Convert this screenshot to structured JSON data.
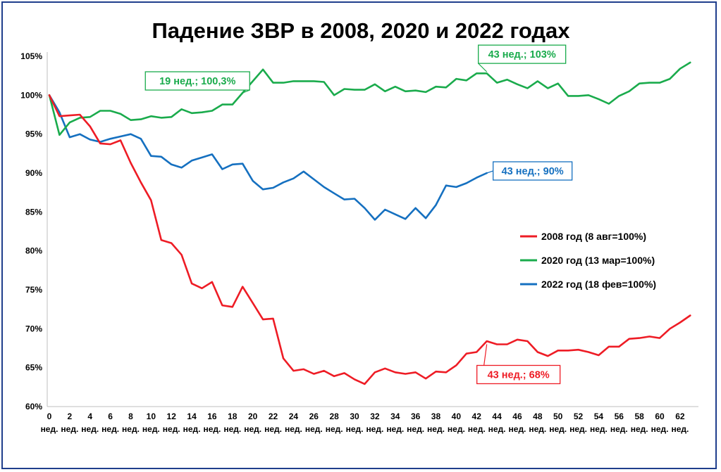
{
  "chart_data": {
    "type": "line",
    "title": "Падение ЗВР в 2008, 2020 и 2022 годах",
    "xlabel": "",
    "ylabel": "",
    "xlim": [
      0,
      63
    ],
    "ylim": [
      60,
      105
    ],
    "y_ticks": [
      "60%",
      "65%",
      "70%",
      "75%",
      "80%",
      "85%",
      "90%",
      "95%",
      "100%",
      "105%"
    ],
    "y_tick_values": [
      60,
      65,
      70,
      75,
      80,
      85,
      90,
      95,
      100,
      105
    ],
    "x_tick_numbers": [
      "0",
      "2",
      "4",
      "6",
      "8",
      "10",
      "12",
      "14",
      "16",
      "18",
      "20",
      "22",
      "24",
      "26",
      "28",
      "30",
      "32",
      "34",
      "36",
      "38",
      "40",
      "42",
      "44",
      "46",
      "48",
      "50",
      "52",
      "54",
      "56",
      "58",
      "60",
      "62"
    ],
    "x_tick_values": [
      0,
      2,
      4,
      6,
      8,
      10,
      12,
      14,
      16,
      18,
      20,
      22,
      24,
      26,
      28,
      30,
      32,
      34,
      36,
      38,
      40,
      42,
      44,
      46,
      48,
      50,
      52,
      54,
      56,
      58,
      60,
      62
    ],
    "x_tick_unit": "нед.",
    "x_tick_unit_count": 32,
    "grid": false,
    "legend_position": "right-middle",
    "series": [
      {
        "name": "2008 год (8 авг=100%)",
        "color": "#ee1c25",
        "values": [
          100,
          97.3,
          97.4,
          97.5,
          96.0,
          93.8,
          93.7,
          94.2,
          91.3,
          88.8,
          86.5,
          81.4,
          81.0,
          79.5,
          75.8,
          75.2,
          76.0,
          73.0,
          72.8,
          75.4,
          73.3,
          71.2,
          71.3,
          66.2,
          64.6,
          64.8,
          64.2,
          64.6,
          63.9,
          64.3,
          63.5,
          62.9,
          64.4,
          64.9,
          64.4,
          64.2,
          64.4,
          63.6,
          64.5,
          64.4,
          65.3,
          66.8,
          67.0,
          68.4,
          68.0,
          68.0,
          68.6,
          68.4,
          67.0,
          66.5,
          67.2,
          67.2,
          67.3,
          67.0,
          66.6,
          67.7,
          67.7,
          68.7,
          68.8,
          69.0,
          68.8,
          70.0,
          70.8,
          71.7
        ]
      },
      {
        "name": "2020 год (13 мар=100%)",
        "color": "#1aab4c",
        "values": [
          100,
          94.9,
          96.5,
          97.1,
          97.2,
          98.0,
          98.0,
          97.6,
          96.8,
          96.9,
          97.3,
          97.1,
          97.2,
          98.2,
          97.7,
          97.8,
          98.0,
          98.8,
          98.8,
          100.3,
          101.8,
          103.3,
          101.6,
          101.6,
          101.8,
          101.8,
          101.8,
          101.7,
          100.0,
          100.8,
          100.7,
          100.7,
          101.4,
          100.5,
          101.1,
          100.5,
          100.6,
          100.4,
          101.1,
          101.0,
          102.1,
          101.9,
          102.8,
          102.8,
          101.6,
          102.0,
          101.4,
          100.9,
          101.8,
          100.9,
          101.5,
          99.9,
          99.9,
          100.0,
          99.5,
          98.9,
          99.9,
          100.5,
          101.5,
          101.6,
          101.6,
          102.1,
          103.4,
          104.2
        ]
      },
      {
        "name": "2022 год (18 фев=100%)",
        "color": "#1570c0",
        "values": [
          100,
          97.8,
          94.6,
          95.0,
          94.3,
          94.0,
          94.4,
          94.7,
          95.0,
          94.4,
          92.2,
          92.1,
          91.1,
          90.7,
          91.6,
          92.0,
          92.4,
          90.5,
          91.1,
          91.2,
          89.0,
          87.9,
          88.1,
          88.8,
          89.3,
          90.2,
          89.2,
          88.2,
          87.4,
          86.6,
          86.7,
          85.5,
          84.0,
          85.3,
          84.7,
          84.1,
          85.5,
          84.2,
          85.9,
          88.4,
          88.2,
          88.7,
          89.4,
          90.0
        ]
      }
    ],
    "annotations": [
      {
        "text": "19 нед.; 100,3%",
        "series": 1,
        "x": 19,
        "y": 100.3
      },
      {
        "text": "43 нед.; 103%",
        "series": 1,
        "x": 43,
        "y": 103
      },
      {
        "text": "43 нед.; 90%",
        "series": 2,
        "x": 43,
        "y": 90
      },
      {
        "text": "43 нед.; 68%",
        "series": 0,
        "x": 43,
        "y": 68
      }
    ]
  }
}
